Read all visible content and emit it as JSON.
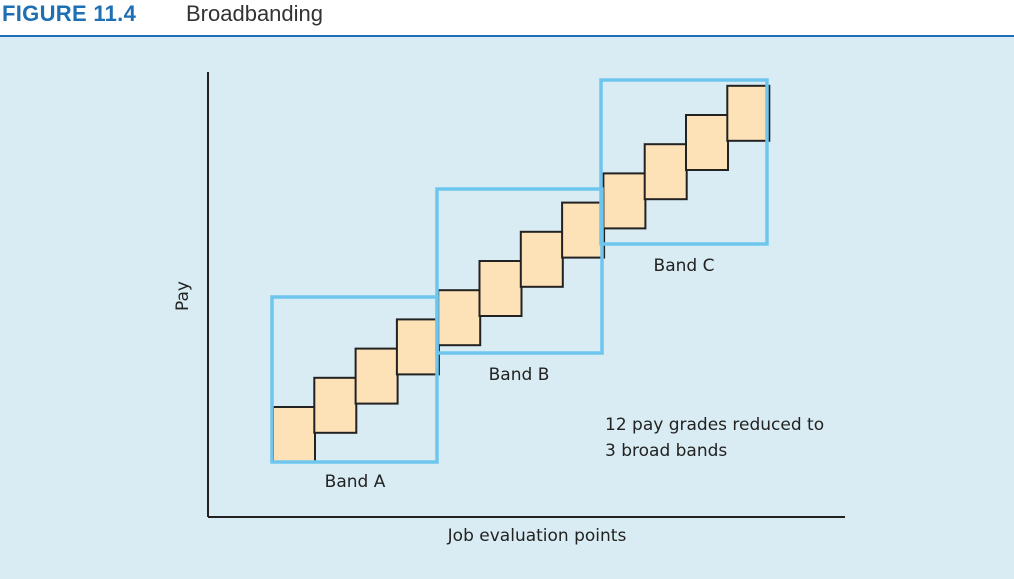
{
  "figure": {
    "label": "FIGURE 11.4",
    "title": "Broadbanding"
  },
  "axes": {
    "y_label": "Pay",
    "x_label": "Job evaluation points"
  },
  "bands": [
    {
      "label": "Band A"
    },
    {
      "label": "Band B"
    },
    {
      "label": "Band C"
    }
  ],
  "pay_grade_count": 12,
  "note_lines": [
    "12 pay grades reduced to",
    "3 broad bands"
  ],
  "colors": {
    "header_accent": "#1f6fb5",
    "panel_background": "#d9ecf3",
    "band_outline": "#6ec6ee",
    "grade_fill": "#fde2b8",
    "grade_stroke": "#222222"
  }
}
